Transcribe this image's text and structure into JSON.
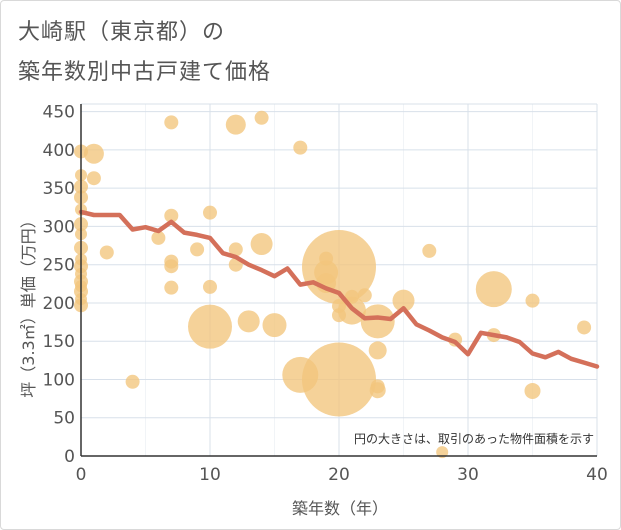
{
  "title_line1": "大崎駅（東京都）の",
  "title_line2": "築年数別中古戸建て価格",
  "chart_data": {
    "type": "scatter",
    "xlabel": "築年数（年）",
    "ylabel": "坪（3.3㎡）単価（万円）",
    "xlim": [
      0,
      40
    ],
    "ylim": [
      0,
      460
    ],
    "xticks": [
      0,
      10,
      20,
      30,
      40
    ],
    "yticks": [
      0,
      50,
      100,
      150,
      200,
      250,
      300,
      350,
      400,
      450
    ],
    "grid": true,
    "annotation": "円の大きさは、取引のあった物件面積を示す",
    "colors": {
      "bubble": "#f2c57c",
      "line": "#d4705a",
      "grid": "#d8e0ea",
      "axis": "#333333"
    },
    "bubbles": [
      {
        "x": 0,
        "y": 398,
        "s": 7
      },
      {
        "x": 0,
        "y": 367,
        "s": 6
      },
      {
        "x": 0,
        "y": 352,
        "s": 7
      },
      {
        "x": 0,
        "y": 338,
        "s": 7
      },
      {
        "x": 0,
        "y": 322,
        "s": 6
      },
      {
        "x": 0,
        "y": 303,
        "s": 7
      },
      {
        "x": 0,
        "y": 290,
        "s": 6
      },
      {
        "x": 0,
        "y": 272,
        "s": 7
      },
      {
        "x": 0,
        "y": 257,
        "s": 6
      },
      {
        "x": 0,
        "y": 248,
        "s": 7
      },
      {
        "x": 0,
        "y": 238,
        "s": 6
      },
      {
        "x": 0,
        "y": 228,
        "s": 7
      },
      {
        "x": 0,
        "y": 222,
        "s": 6
      },
      {
        "x": 0,
        "y": 215,
        "s": 7
      },
      {
        "x": 0,
        "y": 205,
        "s": 6
      },
      {
        "x": 0,
        "y": 197,
        "s": 7
      },
      {
        "x": 1,
        "y": 395,
        "s": 10
      },
      {
        "x": 1,
        "y": 363,
        "s": 7
      },
      {
        "x": 2,
        "y": 266,
        "s": 7
      },
      {
        "x": 4,
        "y": 97,
        "s": 7
      },
      {
        "x": 6,
        "y": 285,
        "s": 7
      },
      {
        "x": 7,
        "y": 436,
        "s": 7
      },
      {
        "x": 7,
        "y": 314,
        "s": 7
      },
      {
        "x": 7,
        "y": 254,
        "s": 7
      },
      {
        "x": 7,
        "y": 248,
        "s": 7
      },
      {
        "x": 7,
        "y": 220,
        "s": 7
      },
      {
        "x": 9,
        "y": 270,
        "s": 7
      },
      {
        "x": 10,
        "y": 318,
        "s": 7
      },
      {
        "x": 10,
        "y": 221,
        "s": 7
      },
      {
        "x": 10,
        "y": 169,
        "s": 22
      },
      {
        "x": 12,
        "y": 433,
        "s": 10
      },
      {
        "x": 12,
        "y": 270,
        "s": 7
      },
      {
        "x": 12,
        "y": 250,
        "s": 7
      },
      {
        "x": 13,
        "y": 176,
        "s": 11
      },
      {
        "x": 14,
        "y": 442,
        "s": 7
      },
      {
        "x": 14,
        "y": 277,
        "s": 11
      },
      {
        "x": 15,
        "y": 171,
        "s": 12
      },
      {
        "x": 17,
        "y": 403,
        "s": 7
      },
      {
        "x": 17,
        "y": 106,
        "s": 18
      },
      {
        "x": 19,
        "y": 258,
        "s": 7
      },
      {
        "x": 19,
        "y": 240,
        "s": 12
      },
      {
        "x": 19,
        "y": 226,
        "s": 10
      },
      {
        "x": 20,
        "y": 247,
        "s": 37
      },
      {
        "x": 20,
        "y": 100,
        "s": 37
      },
      {
        "x": 20,
        "y": 184,
        "s": 7
      },
      {
        "x": 20,
        "y": 196,
        "s": 7
      },
      {
        "x": 21,
        "y": 190,
        "s": 14
      },
      {
        "x": 21,
        "y": 208,
        "s": 7
      },
      {
        "x": 22,
        "y": 210,
        "s": 7
      },
      {
        "x": 23,
        "y": 176,
        "s": 17
      },
      {
        "x": 23,
        "y": 138,
        "s": 9
      },
      {
        "x": 23,
        "y": 91,
        "s": 7
      },
      {
        "x": 23,
        "y": 86,
        "s": 8
      },
      {
        "x": 25,
        "y": 203,
        "s": 11
      },
      {
        "x": 27,
        "y": 268,
        "s": 7
      },
      {
        "x": 28,
        "y": 5,
        "s": 6
      },
      {
        "x": 29,
        "y": 152,
        "s": 7
      },
      {
        "x": 32,
        "y": 218,
        "s": 18
      },
      {
        "x": 32,
        "y": 158,
        "s": 7
      },
      {
        "x": 35,
        "y": 203,
        "s": 7
      },
      {
        "x": 35,
        "y": 85,
        "s": 8
      },
      {
        "x": 39,
        "y": 168,
        "s": 7
      }
    ],
    "line": [
      [
        0,
        319
      ],
      [
        1,
        315
      ],
      [
        2,
        315
      ],
      [
        3,
        315
      ],
      [
        4,
        296
      ],
      [
        5,
        299
      ],
      [
        6,
        294
      ],
      [
        7,
        306
      ],
      [
        8,
        292
      ],
      [
        9,
        289
      ],
      [
        10,
        285
      ],
      [
        11,
        265
      ],
      [
        12,
        260
      ],
      [
        13,
        250
      ],
      [
        14,
        243
      ],
      [
        15,
        235
      ],
      [
        16,
        245
      ],
      [
        17,
        224
      ],
      [
        18,
        227
      ],
      [
        19,
        219
      ],
      [
        20,
        213
      ],
      [
        21,
        193
      ],
      [
        22,
        180
      ],
      [
        23,
        181
      ],
      [
        24,
        179
      ],
      [
        25,
        193
      ],
      [
        26,
        172
      ],
      [
        27,
        164
      ],
      [
        28,
        155
      ],
      [
        29,
        149
      ],
      [
        30,
        133
      ],
      [
        31,
        161
      ],
      [
        32,
        158
      ],
      [
        33,
        155
      ],
      [
        34,
        149
      ],
      [
        35,
        134
      ],
      [
        36,
        129
      ],
      [
        37,
        136
      ],
      [
        38,
        127
      ],
      [
        39,
        122
      ],
      [
        40,
        117
      ]
    ]
  }
}
